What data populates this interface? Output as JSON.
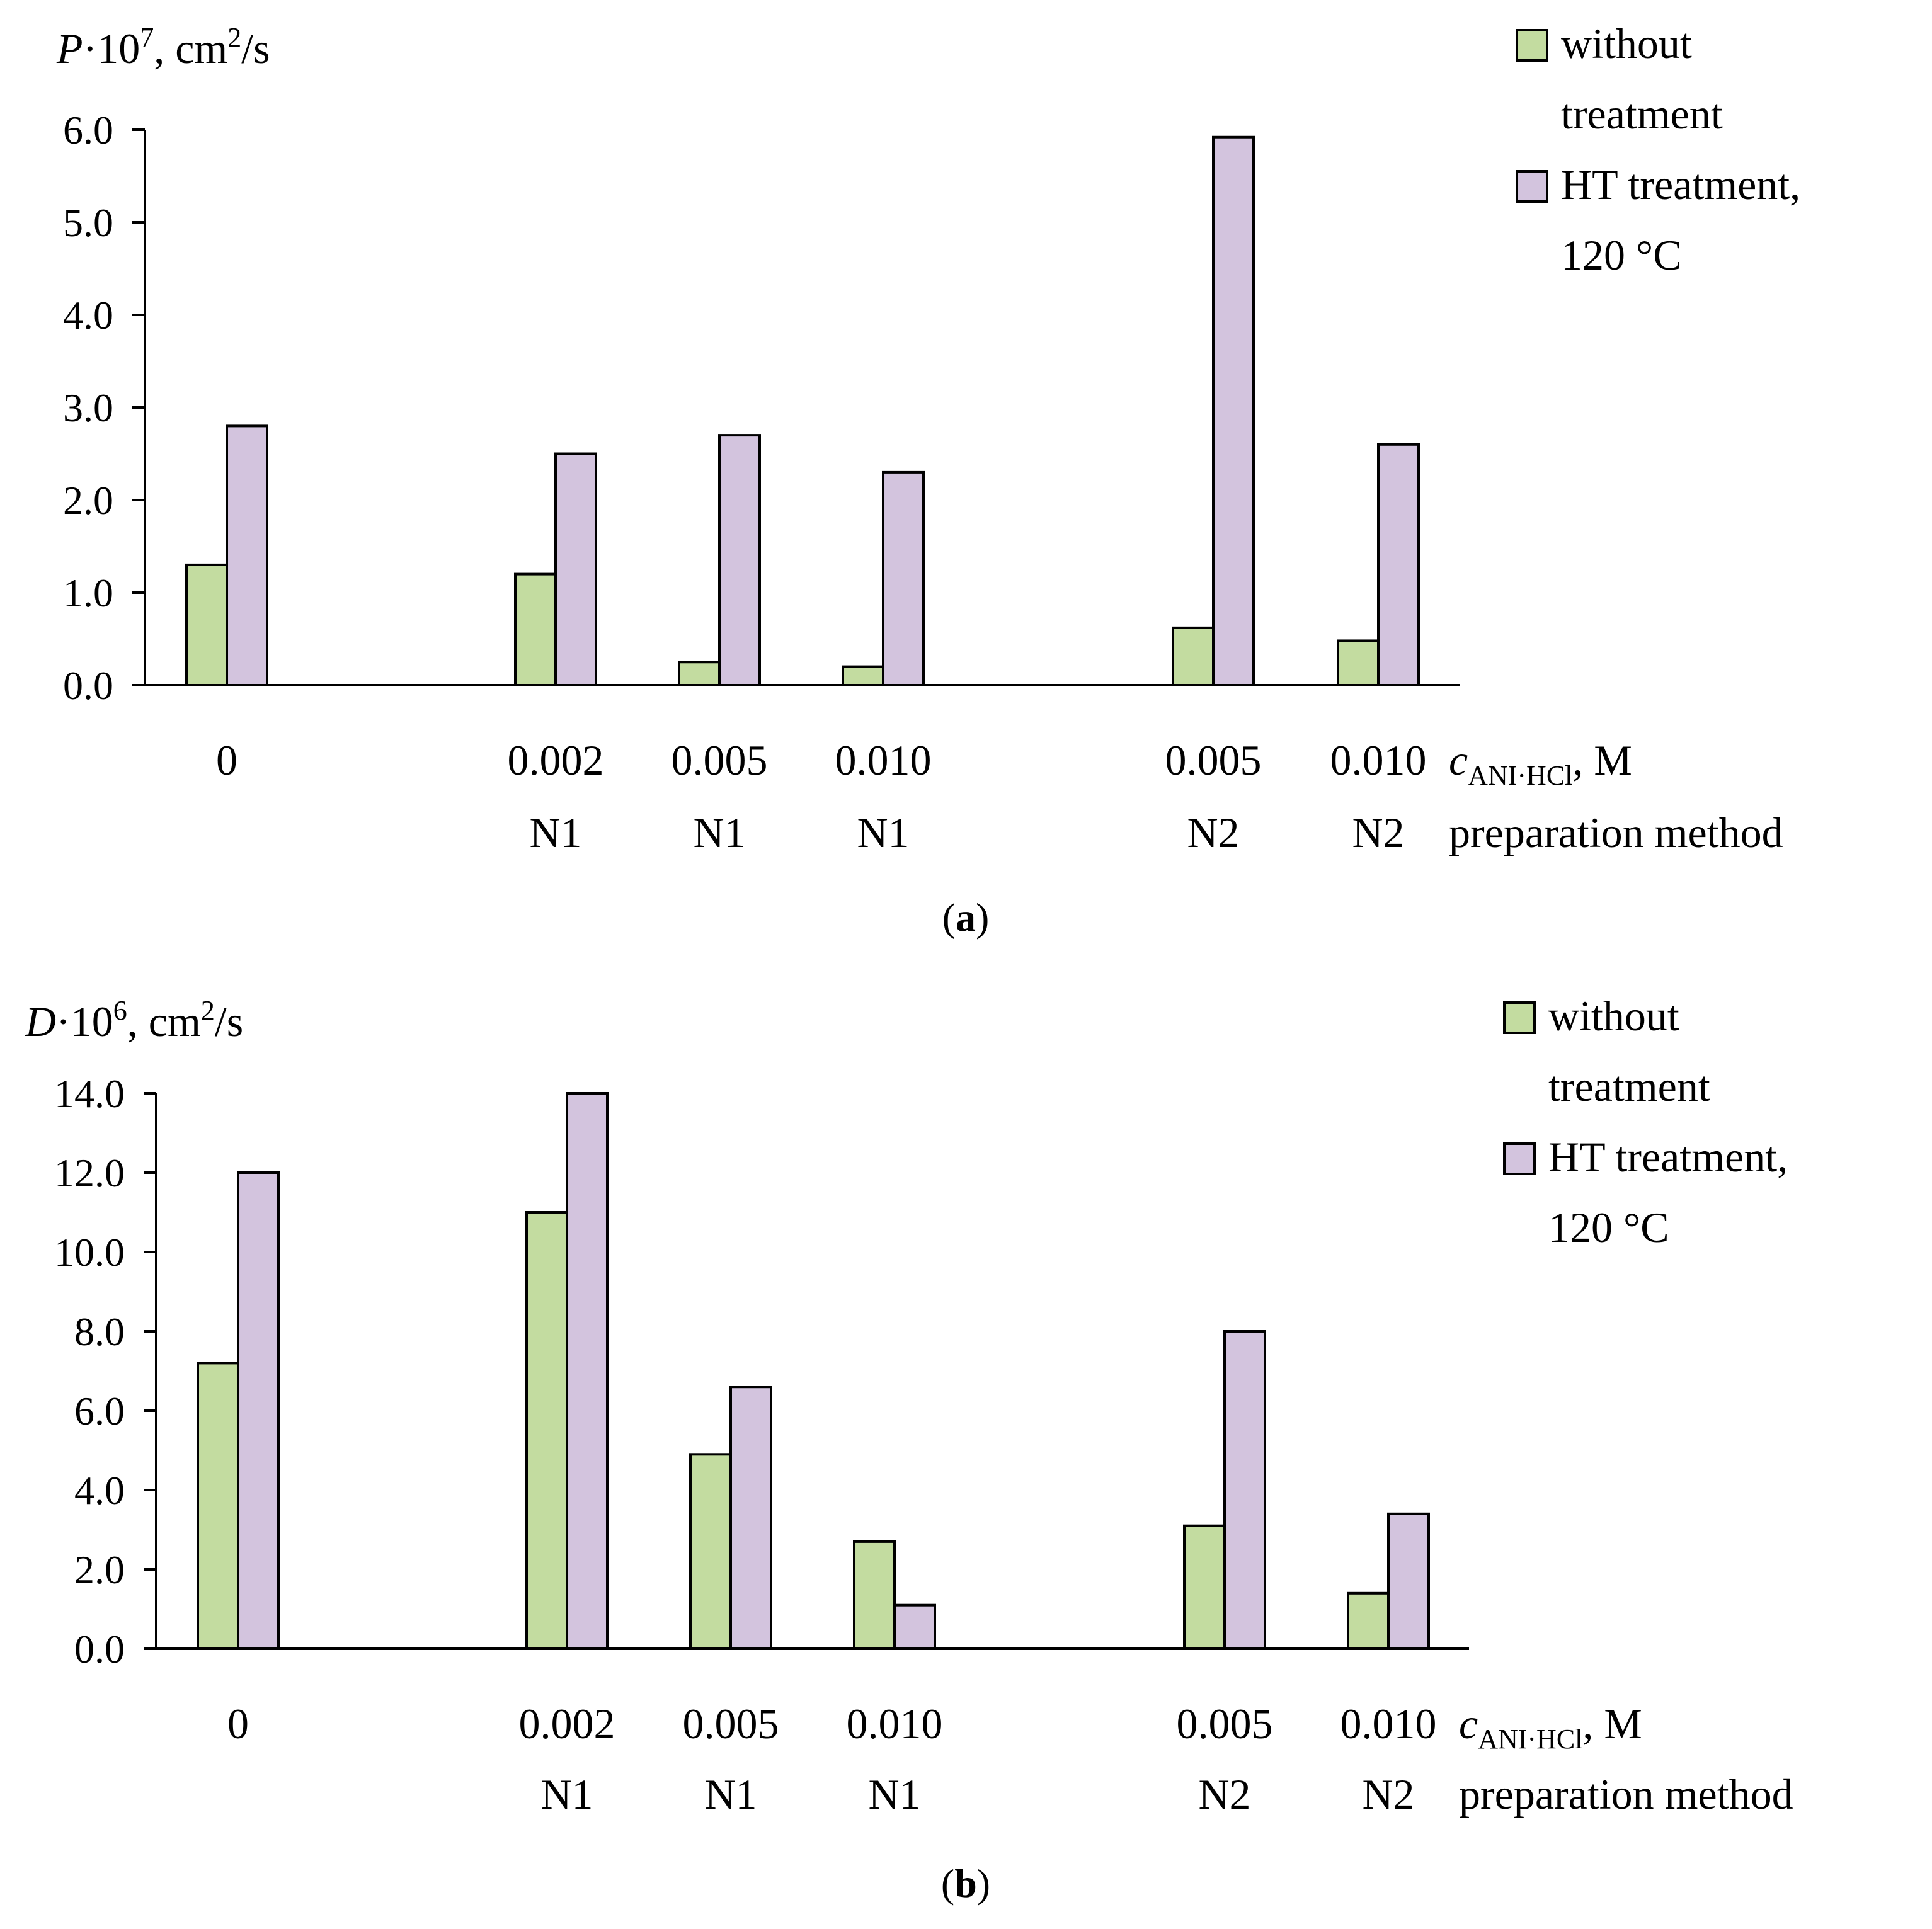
{
  "colors": {
    "green": "#c3dca0",
    "purple": "#d3c4de",
    "stroke": "#000000"
  },
  "chart_data": [
    {
      "type": "bar",
      "panel_label": "a",
      "ylabel": {
        "symbol": "P",
        "mult": "·10",
        "exp": "7",
        "unit_a": ", cm",
        "unit_exp": "2",
        "unit_b": "/s"
      },
      "ylim": [
        0,
        6.0
      ],
      "yticks": [
        "0.0",
        "1.0",
        "2.0",
        "3.0",
        "4.0",
        "5.0",
        "6.0"
      ],
      "categories": [
        {
          "conc": "0",
          "method": ""
        },
        {
          "conc": "0.002",
          "method": "N1"
        },
        {
          "conc": "0.005",
          "method": "N1"
        },
        {
          "conc": "0.010",
          "method": "N1"
        },
        {
          "conc": "0.005",
          "method": "N2"
        },
        {
          "conc": "0.010",
          "method": "N2"
        }
      ],
      "series": [
        {
          "name_line1": "without",
          "name_line2": "treatment",
          "values": [
            1.3,
            1.2,
            0.25,
            0.2,
            0.62,
            0.48
          ]
        },
        {
          "name_line1": "HT treatment,",
          "name_line2": "120 °C",
          "values": [
            2.8,
            2.5,
            2.7,
            2.3,
            5.92,
            2.6
          ]
        }
      ],
      "xlabel_conc": {
        "c": "c",
        "sub": "ANI·HCl",
        "unit": ", M"
      },
      "xlabel_method": "preparation method"
    },
    {
      "type": "bar",
      "panel_label": "b",
      "ylabel": {
        "symbol": "D",
        "mult": "·10",
        "exp": "6",
        "unit_a": ", cm",
        "unit_exp": "2",
        "unit_b": "/s"
      },
      "ylim": [
        0,
        14.0
      ],
      "yticks": [
        "0.0",
        "2.0",
        "4.0",
        "6.0",
        "8.0",
        "10.0",
        "12.0",
        "14.0"
      ],
      "categories": [
        {
          "conc": "0",
          "method": ""
        },
        {
          "conc": "0.002",
          "method": "N1"
        },
        {
          "conc": "0.005",
          "method": "N1"
        },
        {
          "conc": "0.010",
          "method": "N1"
        },
        {
          "conc": "0.005",
          "method": "N2"
        },
        {
          "conc": "0.010",
          "method": "N2"
        }
      ],
      "series": [
        {
          "name_line1": "without",
          "name_line2": "treatment",
          "values": [
            7.2,
            11.0,
            4.9,
            2.7,
            3.1,
            1.4
          ]
        },
        {
          "name_line1": "HT treatment,",
          "name_line2": "120 °C",
          "values": [
            12.0,
            14.0,
            6.6,
            1.1,
            8.0,
            3.4
          ]
        }
      ],
      "xlabel_conc": {
        "c": "c",
        "sub": "ANI·HCl",
        "unit": ", M"
      },
      "xlabel_method": "preparation method"
    }
  ]
}
